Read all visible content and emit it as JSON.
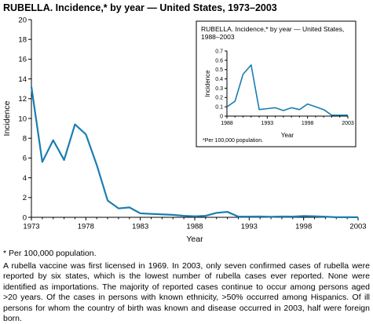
{
  "title": "RUBELLA. Incidence,* by year — United States, 1973–2003",
  "footnote": "* Per 100,000 population.",
  "description": "A rubella vaccine was first licensed in 1969. In 2003, only seven confirmed cases of rubella were reported by six states, which is the lowest number of rubella cases ever reported. None were identified as importations. The majority of reported cases continue to occur among persons aged >20 years. Of the cases in persons with known ethnicity, >50% occurred among Hispanics. Of ill persons for whom the country of birth was known and disease occurred in 2003, half were foreign born.",
  "colors": {
    "line": "#1a7eb0",
    "axis": "#000000",
    "inset_border": "#000000"
  },
  "chart_data": [
    {
      "type": "line",
      "title": "RUBELLA. Incidence,* by year — United States, 1973–2003",
      "xlabel": "Year",
      "ylabel": "Incidence",
      "xlim": [
        1973,
        2003
      ],
      "ylim": [
        0,
        20
      ],
      "x_ticks": [
        1973,
        1978,
        1983,
        1988,
        1993,
        1998,
        2003
      ],
      "y_ticks": [
        0,
        2,
        4,
        6,
        8,
        10,
        12,
        14,
        16,
        18,
        20
      ],
      "grid": false,
      "series": [
        {
          "x": [
            1973,
            1974,
            1975,
            1976,
            1977,
            1978,
            1979,
            1980,
            1981,
            1982,
            1983,
            1984,
            1985,
            1986,
            1987,
            1988,
            1989,
            1990,
            1991,
            1992,
            1993,
            1994,
            1995,
            1996,
            1997,
            1998,
            1999,
            2000,
            2001,
            2002,
            2003
          ],
          "values": [
            13.2,
            5.6,
            7.8,
            5.8,
            9.4,
            8.4,
            5.3,
            1.7,
            0.9,
            1.0,
            0.4,
            0.35,
            0.3,
            0.25,
            0.15,
            0.1,
            0.15,
            0.45,
            0.55,
            0.07,
            0.07,
            0.08,
            0.05,
            0.08,
            0.07,
            0.13,
            0.1,
            0.06,
            0.01,
            0.01,
            0.01
          ]
        }
      ]
    },
    {
      "type": "line",
      "title": "RUBELLA. Incidence,* by year — United States, 1988–2003",
      "xlabel": "Year",
      "ylabel": "Incidence",
      "xlim": [
        1988,
        2003
      ],
      "ylim": [
        0,
        0.7
      ],
      "x_ticks": [
        1988,
        1993,
        1998,
        2003
      ],
      "y_ticks": [
        0,
        0.1,
        0.2,
        0.3,
        0.4,
        0.5,
        0.6,
        0.7
      ],
      "footnote": "*Per 100,000 population.",
      "grid": false,
      "series": [
        {
          "x": [
            1988,
            1989,
            1990,
            1991,
            1992,
            1993,
            1994,
            1995,
            1996,
            1997,
            1998,
            1999,
            2000,
            2001,
            2002,
            2003
          ],
          "values": [
            0.1,
            0.16,
            0.45,
            0.55,
            0.07,
            0.08,
            0.09,
            0.06,
            0.09,
            0.07,
            0.13,
            0.1,
            0.07,
            0.01,
            0.01,
            0.01
          ]
        }
      ]
    }
  ]
}
